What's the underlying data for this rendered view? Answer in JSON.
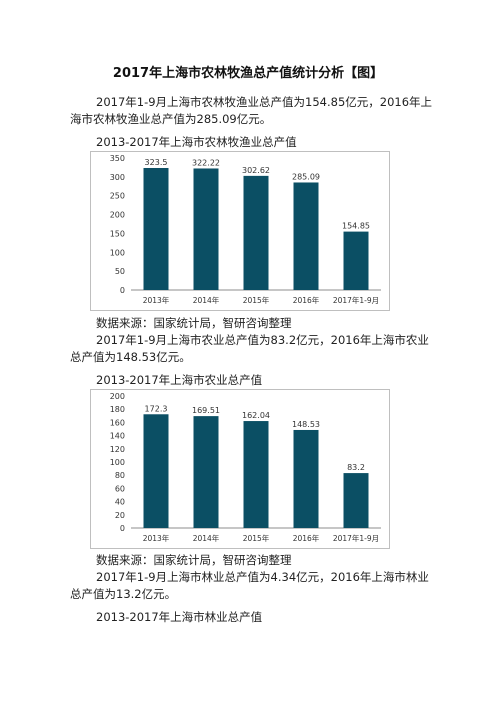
{
  "doc": {
    "title": "2017年上海市农林牧渔总产值统计分析【图】",
    "para1": "2017年1-9月上海市农林牧渔业总产值为154.85亿元，2016年上海市农林牧渔业总产值为285.09亿元。",
    "caption1": "2013-2017年上海市农林牧渔业总产值",
    "source1": "数据来源：国家统计局，智研咨询整理",
    "para2": "2017年1-9月上海市农业总产值为83.2亿元，2016年上海市农业总产值为148.53亿元。",
    "caption2": "2013-2017年上海市农业总产值",
    "source2": "数据来源：国家统计局，智研咨询整理",
    "para3": "2017年1-9月上海市林业总产值为4.34亿元，2016年上海市林业总产值为13.2亿元。",
    "caption3": "2013-2017年上海市林业总产值"
  },
  "chart_data": [
    {
      "type": "bar",
      "categories": [
        "2013年",
        "2014年",
        "2015年",
        "2016年",
        "2017年1-9月"
      ],
      "values": [
        323.5,
        322.22,
        302.62,
        285.09,
        154.85
      ],
      "value_labels": [
        "323.5",
        "322.22",
        "302.62",
        "285.09",
        "154.85"
      ],
      "ylim": [
        0,
        350
      ],
      "yticks": [
        0,
        50,
        100,
        150,
        200,
        250,
        300,
        350
      ],
      "grid": false,
      "bar_color": "#0b4f64"
    },
    {
      "type": "bar",
      "categories": [
        "2013年",
        "2014年",
        "2015年",
        "2016年",
        "2017年1-9月"
      ],
      "values": [
        172.3,
        169.51,
        162.04,
        148.53,
        83.2
      ],
      "value_labels": [
        "172.3",
        "169.51",
        "162.04",
        "148.53",
        "83.2"
      ],
      "ylim": [
        0,
        200
      ],
      "yticks": [
        0,
        20,
        40,
        60,
        80,
        100,
        120,
        140,
        160,
        180,
        200
      ],
      "grid": false,
      "bar_color": "#0b4f64"
    }
  ]
}
